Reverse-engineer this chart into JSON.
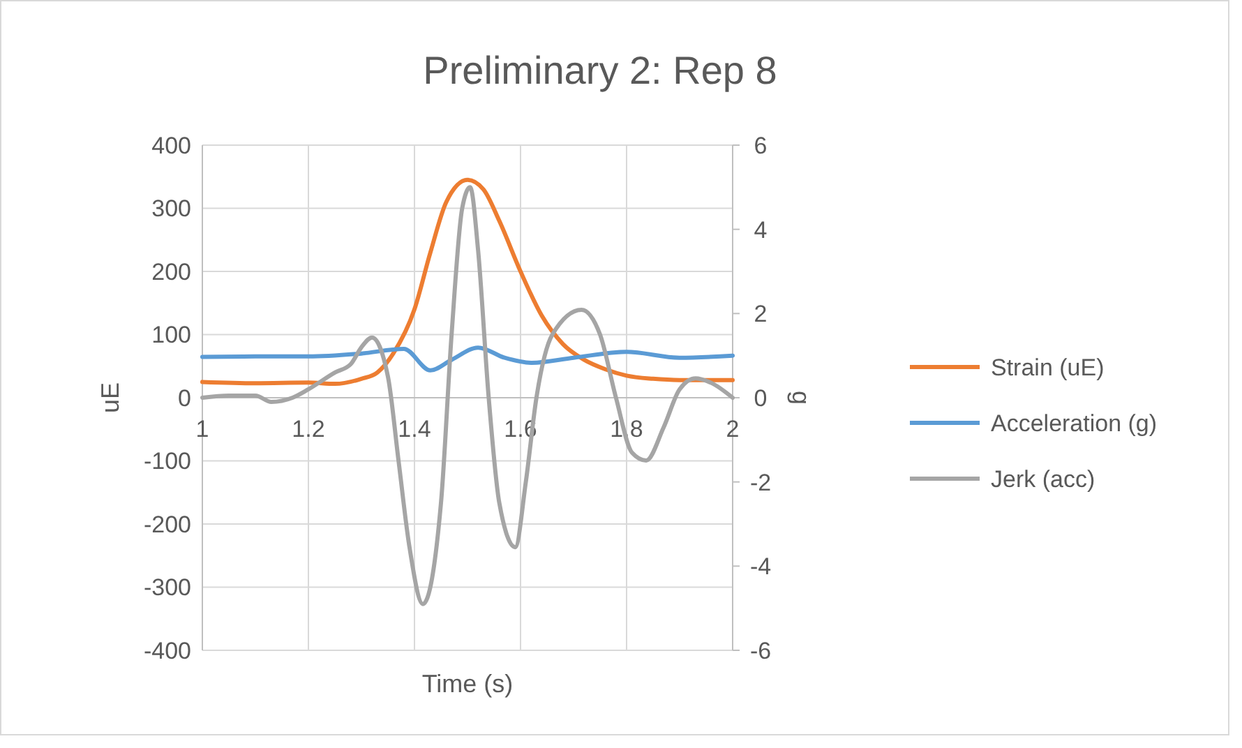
{
  "chart_data": {
    "type": "line",
    "title": "Preliminary 2: Rep 8",
    "xlabel": "Time (s)",
    "ylabel": "uE",
    "y2label": "g",
    "xlim": [
      1,
      2
    ],
    "xticks": [
      1,
      1.2,
      1.4,
      1.6,
      1.8,
      2
    ],
    "ylim": [
      -400,
      400
    ],
    "yticks": [
      -400,
      -300,
      -200,
      -100,
      0,
      100,
      200,
      300,
      400
    ],
    "y2lim": [
      -6,
      6
    ],
    "y2ticks": [
      -6,
      -4,
      -2,
      0,
      2,
      4,
      6
    ],
    "grid": true,
    "legend": "right",
    "line_style": "solid",
    "marker": "none",
    "series": [
      {
        "name": "Strain (uE)",
        "color": "#ed7d31",
        "x": [
          1,
          1.1,
          1.2,
          1.25,
          1.3,
          1.33,
          1.36,
          1.4,
          1.43,
          1.46,
          1.5,
          1.53,
          1.56,
          1.6,
          1.64,
          1.68,
          1.72,
          1.76,
          1.8,
          1.85,
          1.9,
          2
        ],
        "values": [
          25,
          23,
          24,
          22,
          30,
          40,
          70,
          140,
          230,
          310,
          345,
          330,
          280,
          200,
          130,
          85,
          60,
          45,
          35,
          30,
          28,
          28
        ]
      },
      {
        "name": "Acceleration (g)",
        "color": "#5b9bd5",
        "axis": "y2",
        "x": [
          1,
          1.1,
          1.2,
          1.3,
          1.38,
          1.43,
          1.47,
          1.52,
          1.57,
          1.62,
          1.7,
          1.8,
          1.9,
          2
        ],
        "values": [
          0.97,
          0.98,
          0.98,
          1.05,
          1.16,
          0.65,
          0.9,
          1.19,
          0.95,
          0.83,
          0.95,
          1.09,
          0.95,
          1.0
        ]
      },
      {
        "name": "Jerk (acc)",
        "color": "#a5a5a5",
        "axis": "y2",
        "x": [
          1,
          1.05,
          1.1,
          1.13,
          1.17,
          1.2,
          1.25,
          1.28,
          1.3,
          1.32,
          1.35,
          1.37,
          1.39,
          1.416,
          1.45,
          1.47,
          1.49,
          1.505,
          1.52,
          1.54,
          1.56,
          1.59,
          1.61,
          1.63,
          1.66,
          1.715,
          1.75,
          1.78,
          1.81,
          1.837,
          1.87,
          1.9,
          1.93,
          1.96,
          2
        ],
        "values": [
          0,
          0.05,
          0.05,
          -0.1,
          0,
          0.2,
          0.6,
          0.8,
          1.2,
          1.43,
          0.5,
          -1.5,
          -3.5,
          -4.9,
          -2.5,
          1.5,
          4.5,
          5.0,
          3.5,
          0,
          -2.5,
          -3.55,
          -2.0,
          0,
          1.5,
          2.09,
          1.5,
          0,
          -1.3,
          -1.49,
          -0.7,
          0.2,
          0.46,
          0.35,
          0
        ]
      }
    ]
  }
}
